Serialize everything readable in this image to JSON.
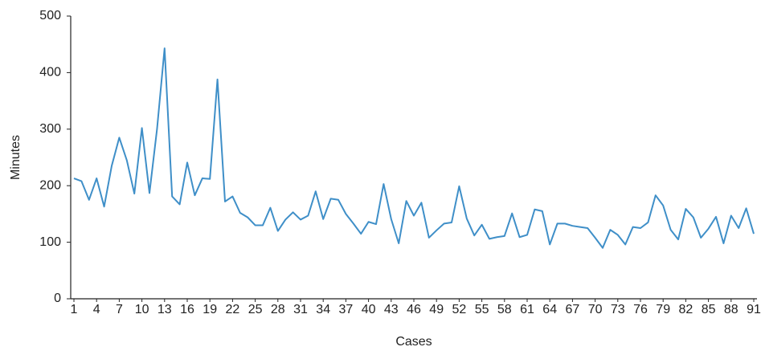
{
  "chart_data": {
    "type": "line",
    "x_label": "Cases",
    "y_label": "Minutes",
    "x": [
      1,
      2,
      3,
      4,
      5,
      6,
      7,
      8,
      9,
      10,
      11,
      12,
      13,
      14,
      15,
      16,
      17,
      18,
      19,
      20,
      21,
      22,
      23,
      24,
      25,
      26,
      27,
      28,
      29,
      30,
      31,
      32,
      33,
      34,
      35,
      36,
      37,
      38,
      39,
      40,
      41,
      42,
      43,
      44,
      45,
      46,
      47,
      48,
      49,
      50,
      51,
      52,
      53,
      54,
      55,
      56,
      57,
      58,
      59,
      60,
      61,
      62,
      63,
      64,
      65,
      66,
      67,
      68,
      69,
      70,
      71,
      72,
      73,
      74,
      75,
      76,
      77,
      78,
      79,
      80,
      81,
      82,
      83,
      84,
      85,
      86,
      87,
      88,
      89,
      90,
      91
    ],
    "series": [
      {
        "color": "#3f8fc8",
        "values": [
          213,
          208,
          175,
          213,
          163,
          235,
          285,
          245,
          186,
          302,
          187,
          300,
          443,
          181,
          167,
          241,
          183,
          213,
          212,
          388,
          172,
          181,
          152,
          144,
          130,
          130,
          161,
          120,
          140,
          153,
          140,
          147,
          190,
          141,
          177,
          175,
          150,
          133,
          115,
          136,
          132,
          203,
          141,
          98,
          173,
          147,
          170,
          108,
          121,
          133,
          135,
          199,
          142,
          112,
          131,
          106,
          109,
          111,
          151,
          109,
          113,
          158,
          155,
          96,
          133,
          133,
          129,
          127,
          125,
          108,
          90,
          122,
          113,
          96,
          127,
          125,
          135,
          183,
          165,
          122,
          105,
          159,
          144,
          108,
          124,
          145,
          98,
          147,
          125,
          160,
          115
        ]
      }
    ],
    "xlim": [
      1,
      91
    ],
    "xticks": [
      1,
      4,
      7,
      10,
      13,
      16,
      19,
      22,
      25,
      28,
      31,
      34,
      37,
      40,
      43,
      46,
      49,
      52,
      55,
      58,
      61,
      64,
      67,
      70,
      73,
      76,
      79,
      82,
      85,
      88,
      91
    ],
    "ylim": [
      0,
      500
    ],
    "yticks": [
      0,
      100,
      200,
      300,
      400,
      500
    ]
  }
}
